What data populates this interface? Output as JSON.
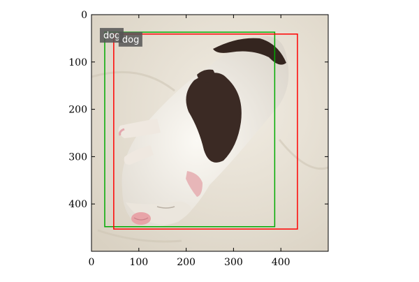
{
  "figure": {
    "x_ticks": [
      0,
      100,
      200,
      300,
      400
    ],
    "y_ticks": [
      0,
      100,
      200,
      300,
      400
    ],
    "x_range": [
      0,
      500
    ],
    "y_range": [
      0,
      500
    ],
    "y_inverted": true
  },
  "photo": {
    "subject": "sleeping white puppy with dark brown patches lying on a pale fleece blanket",
    "colors": {
      "blanket": "#e8e2d6",
      "fur": "#f2efe8",
      "patch": "#3b2a24",
      "nose": "#e8a4a8"
    }
  },
  "boxes": [
    {
      "label": "dog",
      "color": "#00aa00",
      "x1": 28,
      "y1": 37,
      "x2": 387,
      "y2": 448,
      "label_offset": 0
    },
    {
      "label": "dog",
      "color": "#ff0000",
      "x1": 47,
      "y1": 41,
      "x2": 435,
      "y2": 453,
      "label_offset": 1
    }
  ],
  "label_box_color": "#555555"
}
